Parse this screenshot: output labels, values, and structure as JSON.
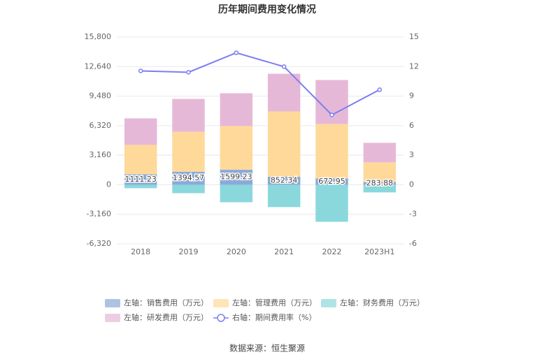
{
  "chart_data": {
    "type": "bar-line",
    "title": "历年期间费用变化情况",
    "source": "数据来源：恒生聚源",
    "categories": [
      "2018",
      "2019",
      "2020",
      "2021",
      "2022",
      "2023H1"
    ],
    "series": [
      {
        "name": "左轴：销售费用（万元）",
        "color": "#8aaad8",
        "type": "bar",
        "values": [
          1111.23,
          1394.57,
          1599.23,
          852.34,
          672.95,
          283.88
        ],
        "data_labels": true
      },
      {
        "name": "左轴：管理费用（万元）",
        "color": "#ffd99a",
        "type": "bar",
        "values": [
          3150,
          4280,
          4680,
          6990,
          5830,
          2110
        ]
      },
      {
        "name": "左轴：财务费用（万元）",
        "color": "#8ad8dc",
        "type": "bar",
        "values": [
          -370,
          -900,
          -1870,
          -2390,
          -3960,
          -820
        ]
      },
      {
        "name": "左轴：研发费用（万元）",
        "color": "#e6b8d8",
        "type": "bar",
        "values": [
          2840,
          3510,
          3510,
          4030,
          4700,
          2090
        ]
      },
      {
        "name": "右轴：期间费用率（%）",
        "color": "#7b7ff0",
        "type": "line",
        "axis": "y2",
        "values": [
          11.56,
          11.42,
          13.4,
          11.99,
          7.09,
          9.65
        ]
      }
    ],
    "ylim": [
      -6320,
      15800
    ],
    "yticks": [
      {
        "value": -6320,
        "label": "-6,320"
      },
      {
        "value": -3160,
        "label": "-3,160"
      },
      0,
      {
        "value": 3160,
        "label": "3,160"
      },
      {
        "value": 6320,
        "label": "6,320"
      },
      {
        "value": 9480,
        "label": "9,480"
      },
      {
        "value": 12640,
        "label": "12,640"
      },
      {
        "value": 15800,
        "label": "15,800"
      }
    ],
    "y2lim": [
      -6,
      15
    ],
    "y2ticks": [
      -6,
      -3,
      0,
      3,
      6,
      9,
      12,
      15
    ],
    "grid": true
  }
}
